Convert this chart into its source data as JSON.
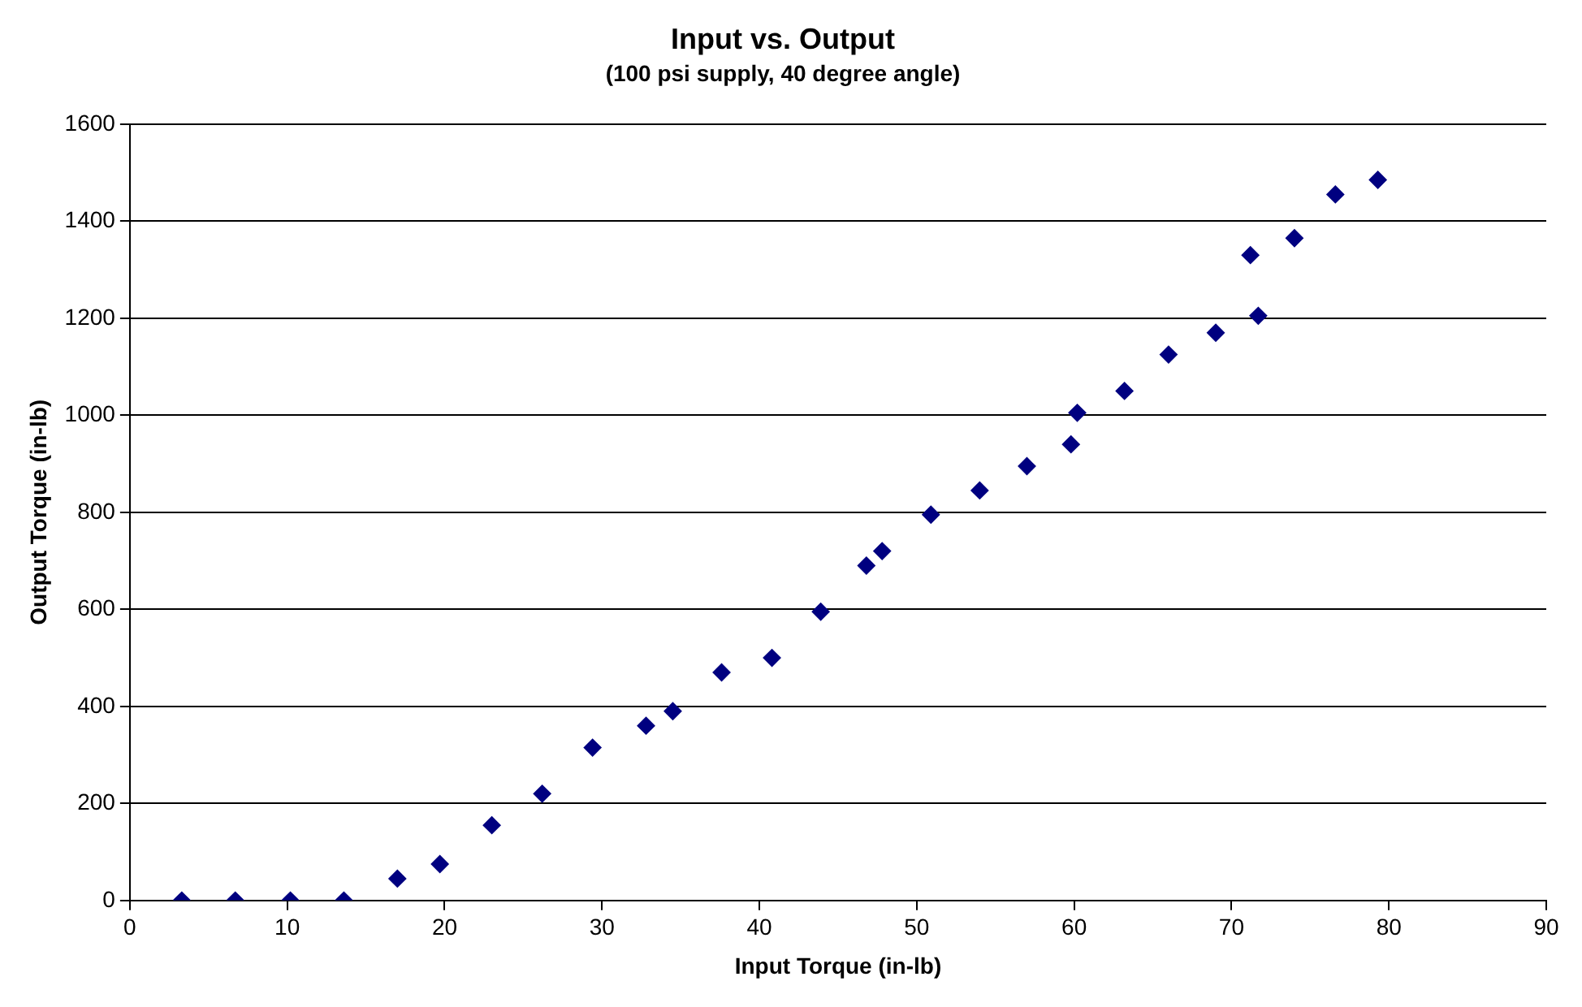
{
  "chart_data": {
    "type": "scatter",
    "title": "Input vs. Output",
    "subtitle": "(100 psi supply, 40 degree angle)",
    "xlabel": "Input Torque (in-lb)",
    "ylabel": "Output Torque (in-lb)",
    "x": [
      3.3,
      6.7,
      10.2,
      13.6,
      17,
      19.7,
      23,
      26.2,
      29.4,
      32.8,
      34.5,
      37.6,
      40.8,
      43.9,
      46.8,
      47.8,
      50.9,
      54,
      57,
      59.8,
      60.2,
      63.2,
      66,
      69,
      71.2,
      71.7,
      74,
      76.6,
      79.3
    ],
    "series": [
      {
        "color": "#000080",
        "values": [
          0,
          0,
          0,
          0,
          45,
          75,
          155,
          220,
          315,
          360,
          390,
          470,
          500,
          595,
          690,
          720,
          795,
          845,
          895,
          940,
          1005,
          1050,
          1125,
          1170,
          1330,
          1205,
          1365,
          1455,
          1485
        ]
      }
    ],
    "xlim": [
      0,
      90
    ],
    "xticks": [
      0,
      10,
      20,
      30,
      40,
      50,
      60,
      70,
      80,
      90
    ],
    "ylim": [
      0,
      1600
    ],
    "yticks": [
      0,
      200,
      400,
      600,
      800,
      1000,
      1200,
      1400,
      1600
    ],
    "grid": "y",
    "legend": false,
    "marker": "diamond"
  }
}
